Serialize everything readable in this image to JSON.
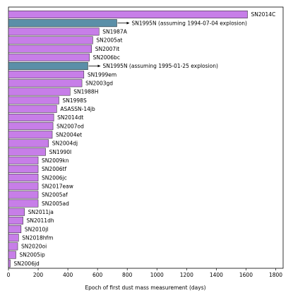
{
  "chart_data": {
    "type": "bar",
    "orientation": "horizontal",
    "title": "",
    "xlabel": "Epoch of first dust mass measurement (days)",
    "ylabel": "",
    "xlim": [
      0,
      1850
    ],
    "xticks": [
      0,
      200,
      400,
      600,
      800,
      1000,
      1200,
      1400,
      1600,
      1800
    ],
    "grid": false,
    "colors": {
      "default": "#c77ee8",
      "special": "#5b8fa8",
      "edge": "#222222"
    },
    "bars": [
      {
        "label": "SN2014C",
        "value": 1610
      },
      {
        "label": "SN1995N (assuming 1994-07-04 explosion)",
        "value": 730,
        "highlight": true,
        "arrow": true
      },
      {
        "label": "SN1987A",
        "value": 610
      },
      {
        "label": "SN2005at",
        "value": 568
      },
      {
        "label": "SN2007it",
        "value": 560
      },
      {
        "label": "SN2006bc",
        "value": 545
      },
      {
        "label": "SN1995N (assuming 1995-01-25 explosion)",
        "value": 535,
        "highlight": true,
        "arrow": true
      },
      {
        "label": "SN1999em",
        "value": 508
      },
      {
        "label": "SN2003gd",
        "value": 495
      },
      {
        "label": "SN1988H",
        "value": 415
      },
      {
        "label": "SN1998S",
        "value": 340
      },
      {
        "label": "ASASSN-14jb",
        "value": 325
      },
      {
        "label": "SN2014dt",
        "value": 305
      },
      {
        "label": "SN2007od",
        "value": 300
      },
      {
        "label": "SN2004et",
        "value": 295
      },
      {
        "label": "SN2004dj",
        "value": 270
      },
      {
        "label": "SN1990I",
        "value": 250
      },
      {
        "label": "SN2009kn",
        "value": 200
      },
      {
        "label": "SN2006tf",
        "value": 200
      },
      {
        "label": "SN2006jc",
        "value": 200
      },
      {
        "label": "SN2017eaw",
        "value": 200
      },
      {
        "label": "SN2005af",
        "value": 200
      },
      {
        "label": "SN2005ad",
        "value": 200
      },
      {
        "label": "SN2011ja",
        "value": 108
      },
      {
        "label": "SN2011dh",
        "value": 98
      },
      {
        "label": "SN2010jl",
        "value": 85
      },
      {
        "label": "SN2018hfm",
        "value": 68
      },
      {
        "label": "SN2020oi",
        "value": 62
      },
      {
        "label": "SN2005ip",
        "value": 50
      },
      {
        "label": "SN2006jd",
        "value": 12
      }
    ]
  }
}
